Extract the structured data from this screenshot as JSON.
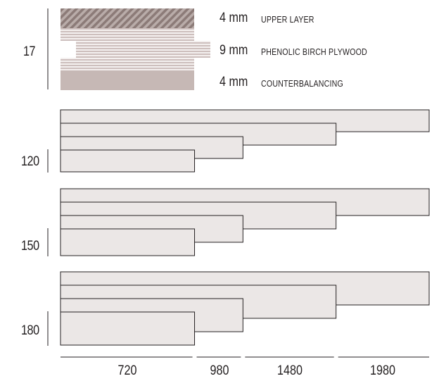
{
  "thickness": {
    "total": "17",
    "layers": [
      {
        "mm": "4 mm",
        "name": "UPPER LAYER"
      },
      {
        "mm": "9 mm",
        "name": "PHENOLIC BIRCH PLYWOOD"
      },
      {
        "mm": "4 mm",
        "name": "COUNTERBALANCING"
      }
    ]
  },
  "widths": [
    {
      "label": "120",
      "lengths": [
        1980,
        1480,
        980,
        720
      ]
    },
    {
      "label": "150",
      "lengths": [
        1980,
        1480,
        980,
        720
      ]
    },
    {
      "label": "180",
      "lengths": [
        1980,
        1480,
        980,
        720
      ]
    }
  ],
  "lengths_axis": [
    "720",
    "980",
    "1480",
    "1980"
  ],
  "colors": {
    "plank_fill": "#ebe7e6",
    "stroke": "#231f20",
    "upper_layer_dark": "#8c7b78",
    "upper_layer_light": "#b9aca9",
    "plywood_stripe": "#cdbfbd",
    "counter_layer": "#c6b8b5"
  }
}
